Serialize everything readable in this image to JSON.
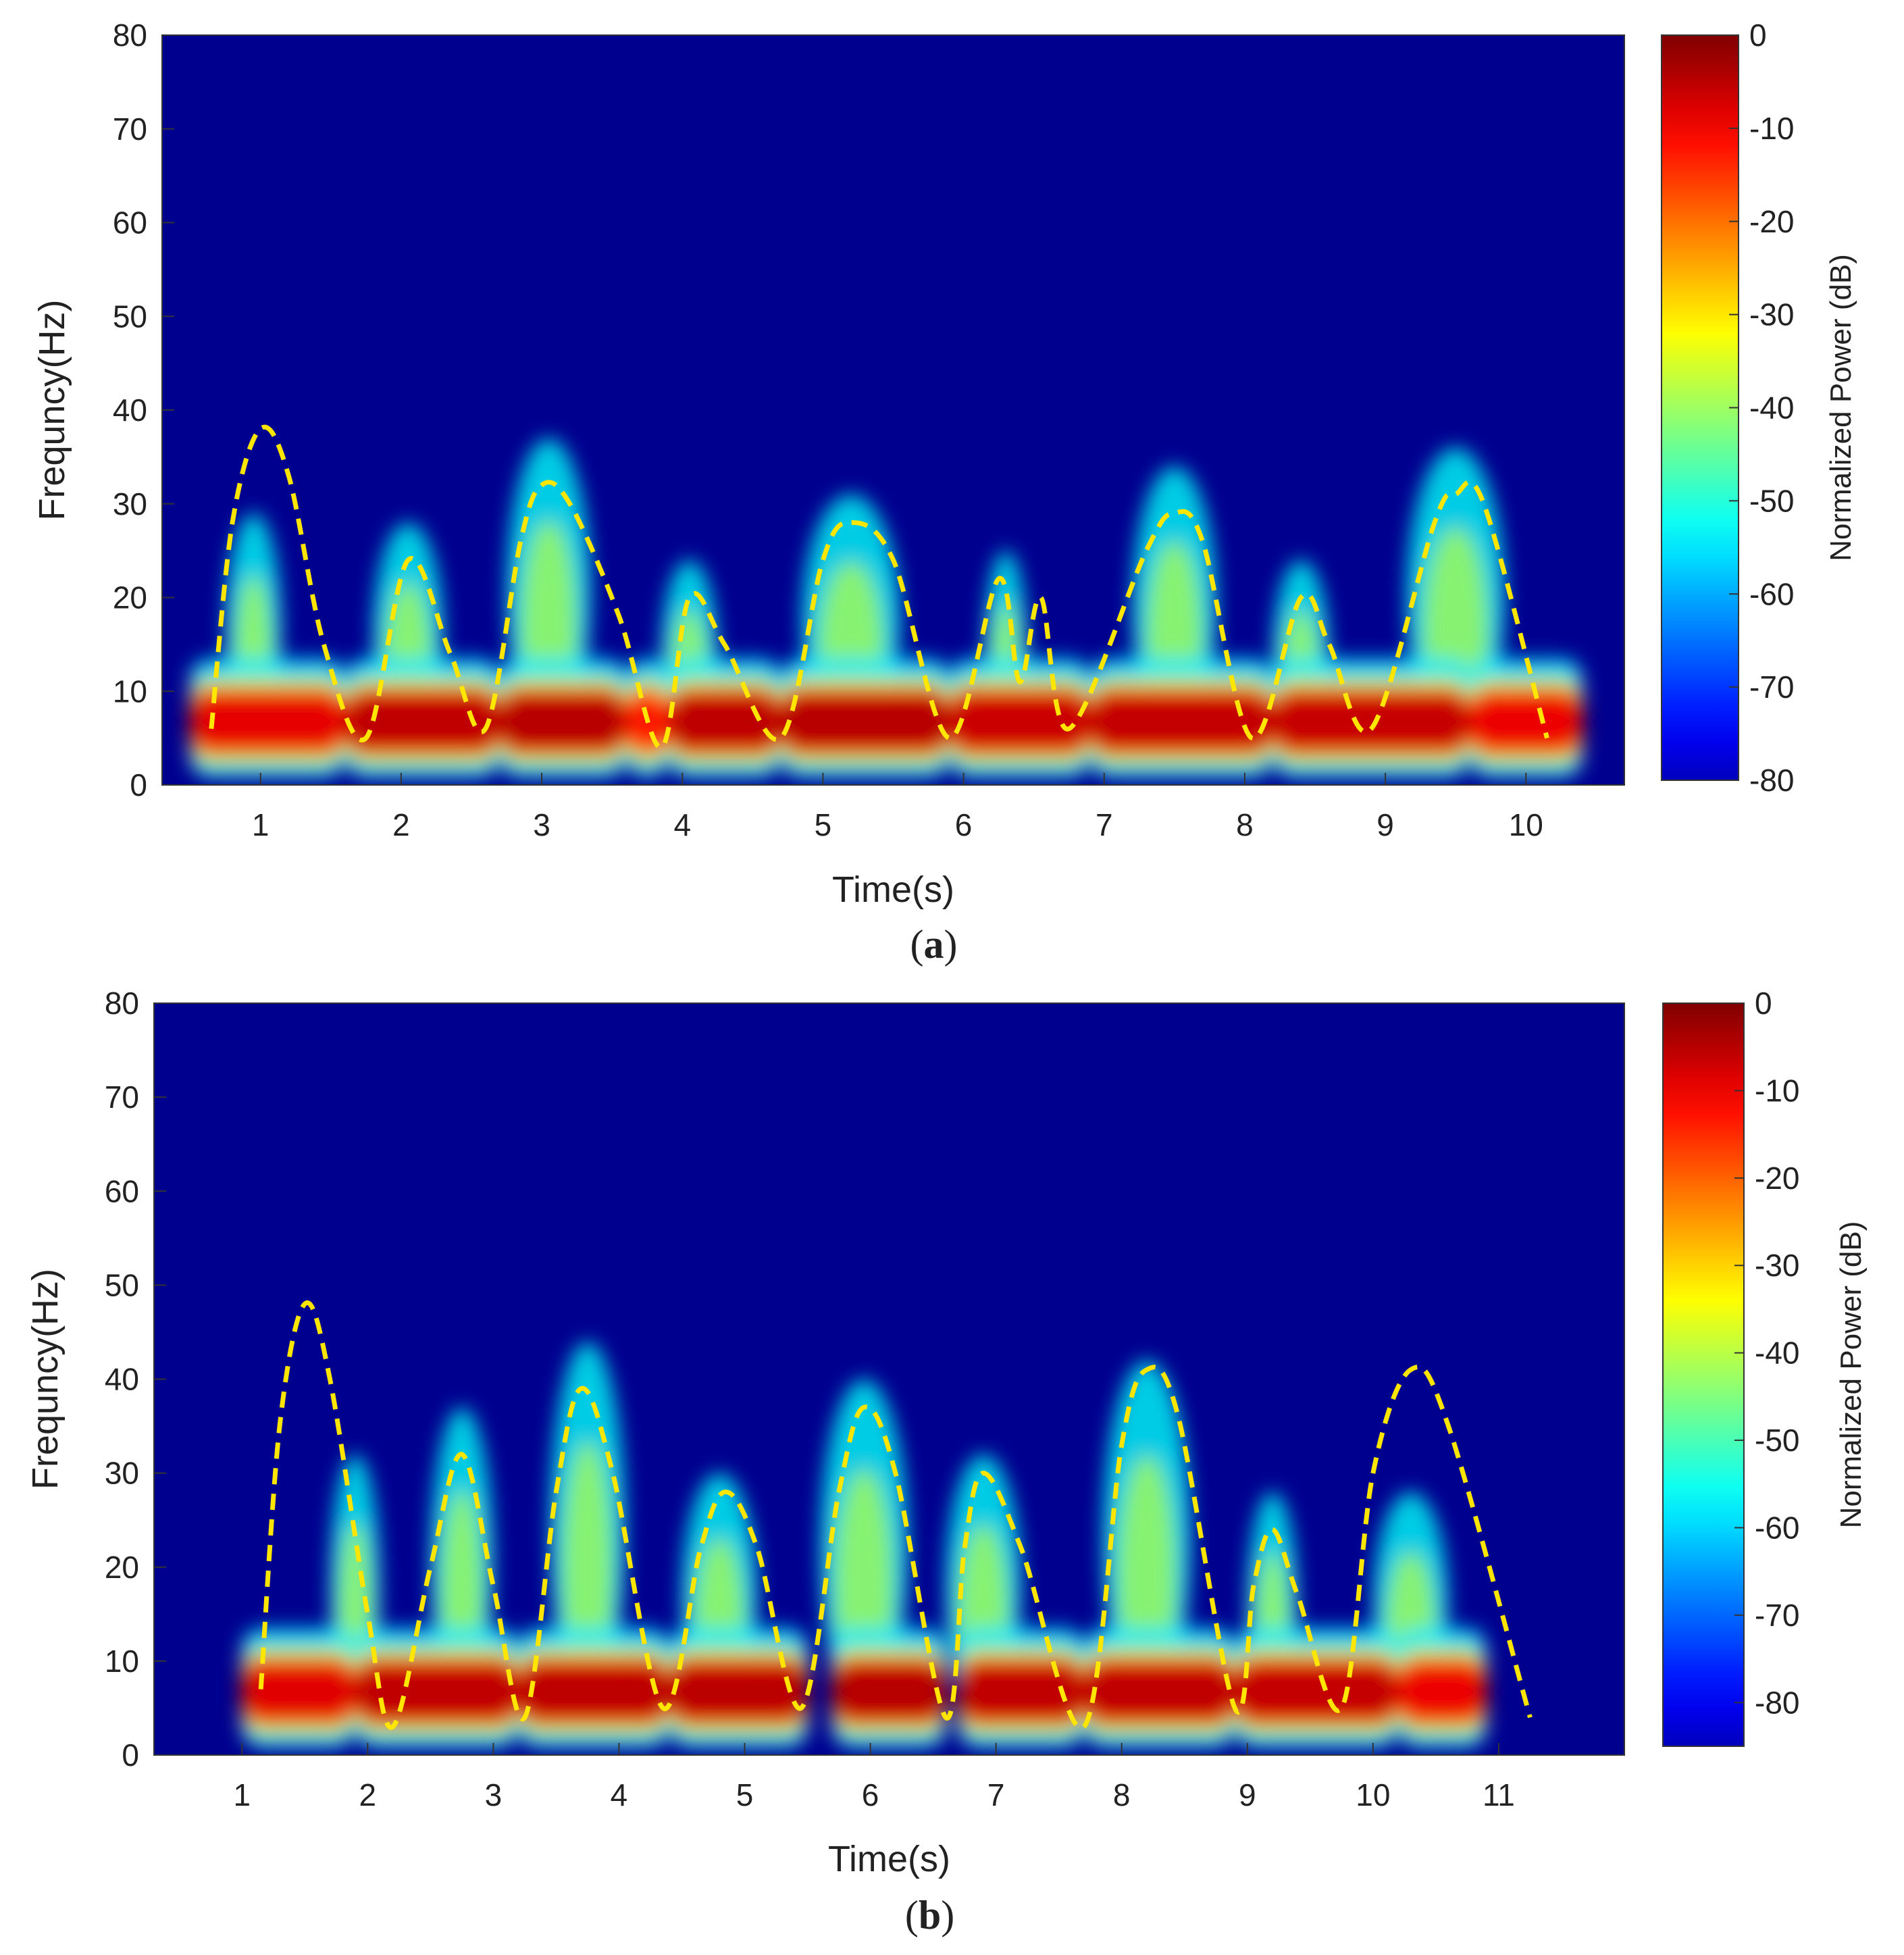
{
  "chart_data": [
    {
      "type": "heatmap",
      "panel_label": "a",
      "xlabel": "Time(s)",
      "ylabel": "Frequncy(Hz)",
      "xlim": [
        0.3,
        10.7
      ],
      "ylim": [
        0,
        80
      ],
      "xticks": [
        1,
        2,
        3,
        4,
        5,
        6,
        7,
        8,
        9,
        10
      ],
      "yticks": [
        0,
        10,
        20,
        30,
        40,
        50,
        60,
        70,
        80
      ],
      "grid": false,
      "background_color": "#00008f",
      "colorbar": {
        "label": "Normalized Power (dB)",
        "range": [
          -80,
          0
        ],
        "ticks": [
          0,
          -10,
          -20,
          -30,
          -40,
          -50,
          -60,
          -70,
          -80
        ],
        "colormap": "jet"
      },
      "heat_regions": [
        {
          "t0": 0.5,
          "t1": 1.6,
          "level": 0.75
        },
        {
          "t0": 1.6,
          "t1": 2.7,
          "level": 0.95
        },
        {
          "t0": 2.7,
          "t1": 3.6,
          "level": 1.0
        },
        {
          "t0": 3.6,
          "t1": 3.9,
          "level": 0.55
        },
        {
          "t0": 3.9,
          "t1": 4.7,
          "level": 0.97
        },
        {
          "t0": 4.7,
          "t1": 5.9,
          "level": 1.0
        },
        {
          "t0": 5.9,
          "t1": 6.9,
          "level": 0.9
        },
        {
          "t0": 6.9,
          "t1": 8.2,
          "level": 0.93
        },
        {
          "t0": 8.2,
          "t1": 9.6,
          "level": 0.92
        },
        {
          "t0": 9.6,
          "t1": 10.4,
          "level": 0.72
        }
      ],
      "plumes": [
        {
          "t": 0.95,
          "fmax": 25,
          "width": 0.2
        },
        {
          "t": 2.05,
          "fmax": 24,
          "width": 0.25
        },
        {
          "t": 3.05,
          "fmax": 33,
          "width": 0.3
        },
        {
          "t": 4.05,
          "fmax": 20,
          "width": 0.2
        },
        {
          "t": 5.2,
          "fmax": 27,
          "width": 0.35
        },
        {
          "t": 6.3,
          "fmax": 21,
          "width": 0.15
        },
        {
          "t": 7.5,
          "fmax": 30,
          "width": 0.3
        },
        {
          "t": 8.4,
          "fmax": 20,
          "width": 0.2
        },
        {
          "t": 9.5,
          "fmax": 32,
          "width": 0.35
        }
      ],
      "envelope_color": "#ffe600",
      "envelope": [
        [
          0.65,
          6
        ],
        [
          0.8,
          28
        ],
        [
          1.0,
          38
        ],
        [
          1.2,
          33
        ],
        [
          1.45,
          15
        ],
        [
          1.75,
          5
        ],
        [
          2.05,
          24
        ],
        [
          2.35,
          14
        ],
        [
          2.6,
          6
        ],
        [
          2.85,
          26
        ],
        [
          3.0,
          32
        ],
        [
          3.2,
          30
        ],
        [
          3.55,
          18
        ],
        [
          3.85,
          4
        ],
        [
          4.05,
          20
        ],
        [
          4.3,
          15
        ],
        [
          4.7,
          5
        ],
        [
          5.0,
          24
        ],
        [
          5.2,
          28
        ],
        [
          5.5,
          24
        ],
        [
          5.9,
          5
        ],
        [
          6.25,
          22
        ],
        [
          6.4,
          11
        ],
        [
          6.55,
          20
        ],
        [
          6.75,
          6
        ],
        [
          7.3,
          25
        ],
        [
          7.5,
          29
        ],
        [
          7.7,
          26
        ],
        [
          8.05,
          5
        ],
        [
          8.4,
          20
        ],
        [
          8.6,
          15
        ],
        [
          8.9,
          6
        ],
        [
          9.35,
          28
        ],
        [
          9.5,
          31
        ],
        [
          9.7,
          30
        ],
        [
          10.15,
          5
        ]
      ]
    },
    {
      "type": "heatmap",
      "panel_label": "b",
      "xlabel": "Time(s)",
      "ylabel": "Frequncy(Hz)",
      "xlim": [
        0.3,
        12.0
      ],
      "ylim": [
        0,
        80
      ],
      "xticks": [
        1,
        2,
        3,
        4,
        5,
        6,
        7,
        8,
        9,
        10,
        11
      ],
      "yticks": [
        0,
        10,
        20,
        30,
        40,
        50,
        60,
        70,
        80
      ],
      "grid": false,
      "background_color": "#00008f",
      "colorbar": {
        "label": "Normalized Power (dB)",
        "range": [
          -85,
          0
        ],
        "ticks": [
          0,
          -10,
          -20,
          -30,
          -40,
          -50,
          -60,
          -70,
          -80
        ],
        "colormap": "jet"
      },
      "heat_regions": [
        {
          "t0": 1.0,
          "t1": 1.9,
          "level": 0.78
        },
        {
          "t0": 1.9,
          "t1": 3.2,
          "level": 0.95
        },
        {
          "t0": 3.2,
          "t1": 4.4,
          "level": 0.97
        },
        {
          "t0": 4.4,
          "t1": 5.5,
          "level": 0.98
        },
        {
          "t0": 5.7,
          "t1": 6.6,
          "level": 1.0
        },
        {
          "t0": 6.7,
          "t1": 7.7,
          "level": 0.95
        },
        {
          "t0": 7.7,
          "t1": 8.9,
          "level": 0.95
        },
        {
          "t0": 8.9,
          "t1": 10.2,
          "level": 0.93
        },
        {
          "t0": 10.2,
          "t1": 10.9,
          "level": 0.72
        }
      ],
      "plumes": [
        {
          "t": 1.9,
          "fmax": 28,
          "width": 0.2
        },
        {
          "t": 2.75,
          "fmax": 33,
          "width": 0.25
        },
        {
          "t": 3.75,
          "fmax": 40,
          "width": 0.3
        },
        {
          "t": 4.8,
          "fmax": 26,
          "width": 0.3
        },
        {
          "t": 5.95,
          "fmax": 36,
          "width": 0.35
        },
        {
          "t": 6.9,
          "fmax": 28,
          "width": 0.3
        },
        {
          "t": 8.2,
          "fmax": 38,
          "width": 0.35
        },
        {
          "t": 9.2,
          "fmax": 24,
          "width": 0.2
        },
        {
          "t": 10.3,
          "fmax": 24,
          "width": 0.3
        }
      ],
      "envelope_color": "#ffe600",
      "envelope": [
        [
          1.15,
          7
        ],
        [
          1.3,
          35
        ],
        [
          1.5,
          48
        ],
        [
          1.7,
          40
        ],
        [
          2.0,
          15
        ],
        [
          2.2,
          3
        ],
        [
          2.5,
          20
        ],
        [
          2.75,
          32
        ],
        [
          3.0,
          18
        ],
        [
          3.25,
          4
        ],
        [
          3.5,
          28
        ],
        [
          3.7,
          39
        ],
        [
          3.95,
          30
        ],
        [
          4.35,
          5
        ],
        [
          4.65,
          22
        ],
        [
          4.85,
          28
        ],
        [
          5.1,
          22
        ],
        [
          5.45,
          5
        ],
        [
          5.75,
          28
        ],
        [
          5.95,
          37
        ],
        [
          6.2,
          30
        ],
        [
          6.6,
          4
        ],
        [
          6.75,
          22
        ],
        [
          6.9,
          30
        ],
        [
          7.2,
          22
        ],
        [
          7.7,
          3
        ],
        [
          8.0,
          33
        ],
        [
          8.2,
          41
        ],
        [
          8.45,
          36
        ],
        [
          8.9,
          5
        ],
        [
          9.05,
          18
        ],
        [
          9.2,
          24
        ],
        [
          9.4,
          17
        ],
        [
          9.75,
          5
        ],
        [
          10.0,
          30
        ],
        [
          10.3,
          41
        ],
        [
          10.6,
          35
        ],
        [
          11.25,
          4
        ]
      ]
    }
  ]
}
